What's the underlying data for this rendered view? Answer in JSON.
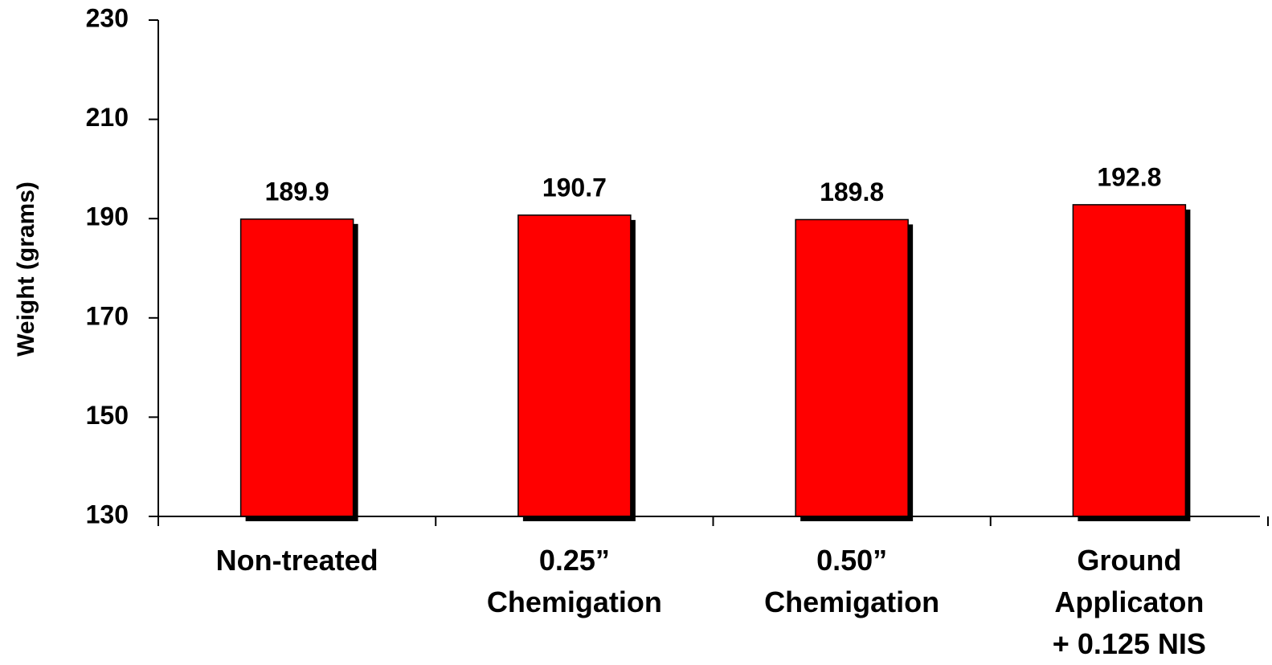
{
  "chart_data": {
    "type": "bar",
    "y_axis_label": "Weight (grams)",
    "categories": [
      "Non-treated",
      "0.25”\nChemigation",
      "0.50”\nChemigation",
      "Ground\nApplicaton\n+ 0.125 NIS"
    ],
    "values": [
      189.9,
      190.7,
      189.8,
      192.8
    ],
    "color": "#ff0000",
    "ylim": [
      130,
      230
    ],
    "yticks": [
      130,
      150,
      170,
      190,
      210,
      230
    ],
    "grid": false
  }
}
